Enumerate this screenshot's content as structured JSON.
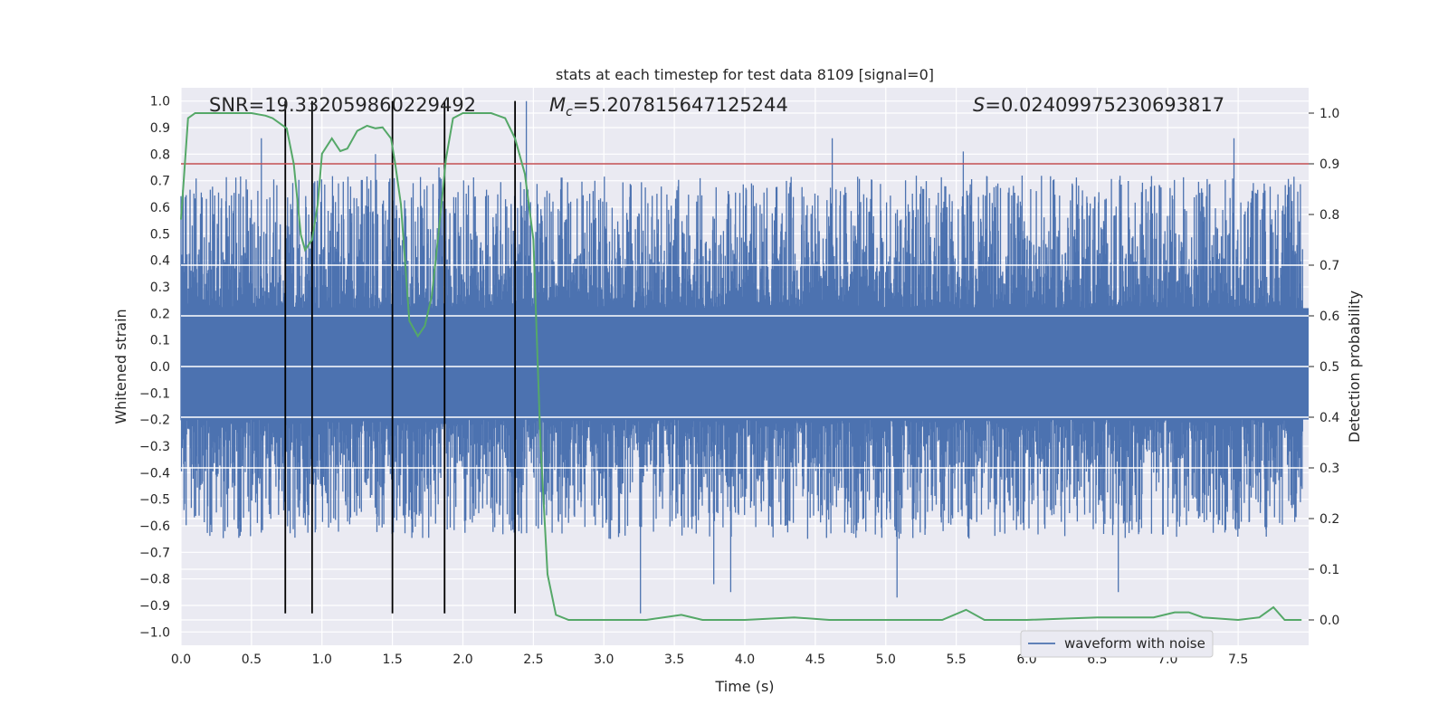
{
  "chart_data": {
    "type": "line",
    "title": "stats at each timestep for test data 8109 [signal=0]",
    "xlabel": "Time (s)",
    "ylabel": "Whitened strain",
    "y2label": "Detection probability",
    "xlim": [
      0.0,
      8.0
    ],
    "ylim": [
      -1.05,
      1.05
    ],
    "y2lim": [
      -0.05,
      1.05
    ],
    "x_ticks": [
      "0.0",
      "0.5",
      "1.0",
      "1.5",
      "2.0",
      "2.5",
      "3.0",
      "3.5",
      "4.0",
      "4.5",
      "5.0",
      "5.5",
      "6.0",
      "6.5",
      "7.0",
      "7.5"
    ],
    "y_ticks": [
      "1.0",
      "0.9",
      "0.8",
      "0.7",
      "0.6",
      "0.5",
      "0.4",
      "0.3",
      "0.2",
      "0.1",
      "0.0",
      "−0.1",
      "−0.2",
      "−0.3",
      "−0.4",
      "−0.5",
      "−0.6",
      "−0.7",
      "−0.8",
      "−0.9",
      "−1.0"
    ],
    "y2_ticks": [
      "1.0",
      "0.9",
      "0.8",
      "0.7",
      "0.6",
      "0.5",
      "0.4",
      "0.3",
      "0.2",
      "0.1",
      "0.0"
    ],
    "grid": true,
    "legend_position": "lower-right",
    "annotations": {
      "snr": "SNR=19.332059860229492",
      "mc_symbol": "M",
      "mc_sub": "c",
      "mc_value": "=5.207815647125244",
      "s_symbol": "S",
      "s_value": "=0.02409975230693817"
    },
    "threshold": {
      "y2": 0.9,
      "color": "#c44e52"
    },
    "vertical_markers": {
      "x": [
        0.74,
        0.93,
        1.5,
        1.87,
        2.37
      ],
      "y_from": -0.93,
      "y_to": 1.0,
      "color": "#000000"
    },
    "waveform": {
      "name": "waveform with noise",
      "color": "#4c72b0",
      "band_upper": 0.22,
      "band_lower": -0.2,
      "notable_peaks": [
        {
          "x": 0.57,
          "y": 0.86
        },
        {
          "x": 1.38,
          "y": 0.8
        },
        {
          "x": 1.83,
          "y": 0.75
        },
        {
          "x": 2.45,
          "y": 1.0
        },
        {
          "x": 3.26,
          "y": -0.93
        },
        {
          "x": 3.78,
          "y": -0.82
        },
        {
          "x": 3.9,
          "y": -0.85
        },
        {
          "x": 4.62,
          "y": 0.86
        },
        {
          "x": 5.08,
          "y": -0.87
        },
        {
          "x": 5.55,
          "y": 0.81
        },
        {
          "x": 6.65,
          "y": -0.85
        },
        {
          "x": 7.47,
          "y": 0.86
        }
      ]
    },
    "detection_probability": {
      "color": "#55a868",
      "points": [
        [
          0.0,
          0.79
        ],
        [
          0.05,
          0.99
        ],
        [
          0.1,
          1.0
        ],
        [
          0.3,
          1.0
        ],
        [
          0.5,
          1.0
        ],
        [
          0.6,
          0.995
        ],
        [
          0.65,
          0.99
        ],
        [
          0.7,
          0.98
        ],
        [
          0.75,
          0.97
        ],
        [
          0.8,
          0.9
        ],
        [
          0.85,
          0.76
        ],
        [
          0.88,
          0.73
        ],
        [
          0.93,
          0.75
        ],
        [
          0.97,
          0.82
        ],
        [
          1.0,
          0.92
        ],
        [
          1.07,
          0.95
        ],
        [
          1.13,
          0.925
        ],
        [
          1.18,
          0.93
        ],
        [
          1.25,
          0.965
        ],
        [
          1.32,
          0.975
        ],
        [
          1.38,
          0.97
        ],
        [
          1.43,
          0.972
        ],
        [
          1.49,
          0.95
        ],
        [
          1.52,
          0.9
        ],
        [
          1.56,
          0.82
        ],
        [
          1.62,
          0.59
        ],
        [
          1.68,
          0.56
        ],
        [
          1.73,
          0.58
        ],
        [
          1.78,
          0.64
        ],
        [
          1.83,
          0.77
        ],
        [
          1.88,
          0.91
        ],
        [
          1.93,
          0.99
        ],
        [
          2.0,
          1.0
        ],
        [
          2.2,
          1.0
        ],
        [
          2.3,
          0.99
        ],
        [
          2.37,
          0.95
        ],
        [
          2.44,
          0.88
        ],
        [
          2.5,
          0.75
        ],
        [
          2.55,
          0.35
        ],
        [
          2.6,
          0.09
        ],
        [
          2.66,
          0.01
        ],
        [
          2.75,
          0.0
        ],
        [
          3.0,
          0.0
        ],
        [
          3.3,
          0.0
        ],
        [
          3.55,
          0.01
        ],
        [
          3.7,
          0.0
        ],
        [
          4.0,
          0.0
        ],
        [
          4.35,
          0.005
        ],
        [
          4.6,
          0.0
        ],
        [
          5.0,
          0.0
        ],
        [
          5.4,
          0.0
        ],
        [
          5.57,
          0.02
        ],
        [
          5.7,
          0.0
        ],
        [
          6.0,
          0.0
        ],
        [
          6.5,
          0.005
        ],
        [
          6.9,
          0.005
        ],
        [
          7.05,
          0.015
        ],
        [
          7.15,
          0.015
        ],
        [
          7.25,
          0.005
        ],
        [
          7.5,
          0.0
        ],
        [
          7.65,
          0.005
        ],
        [
          7.75,
          0.025
        ],
        [
          7.83,
          0.0
        ],
        [
          7.95,
          0.0
        ]
      ]
    }
  }
}
